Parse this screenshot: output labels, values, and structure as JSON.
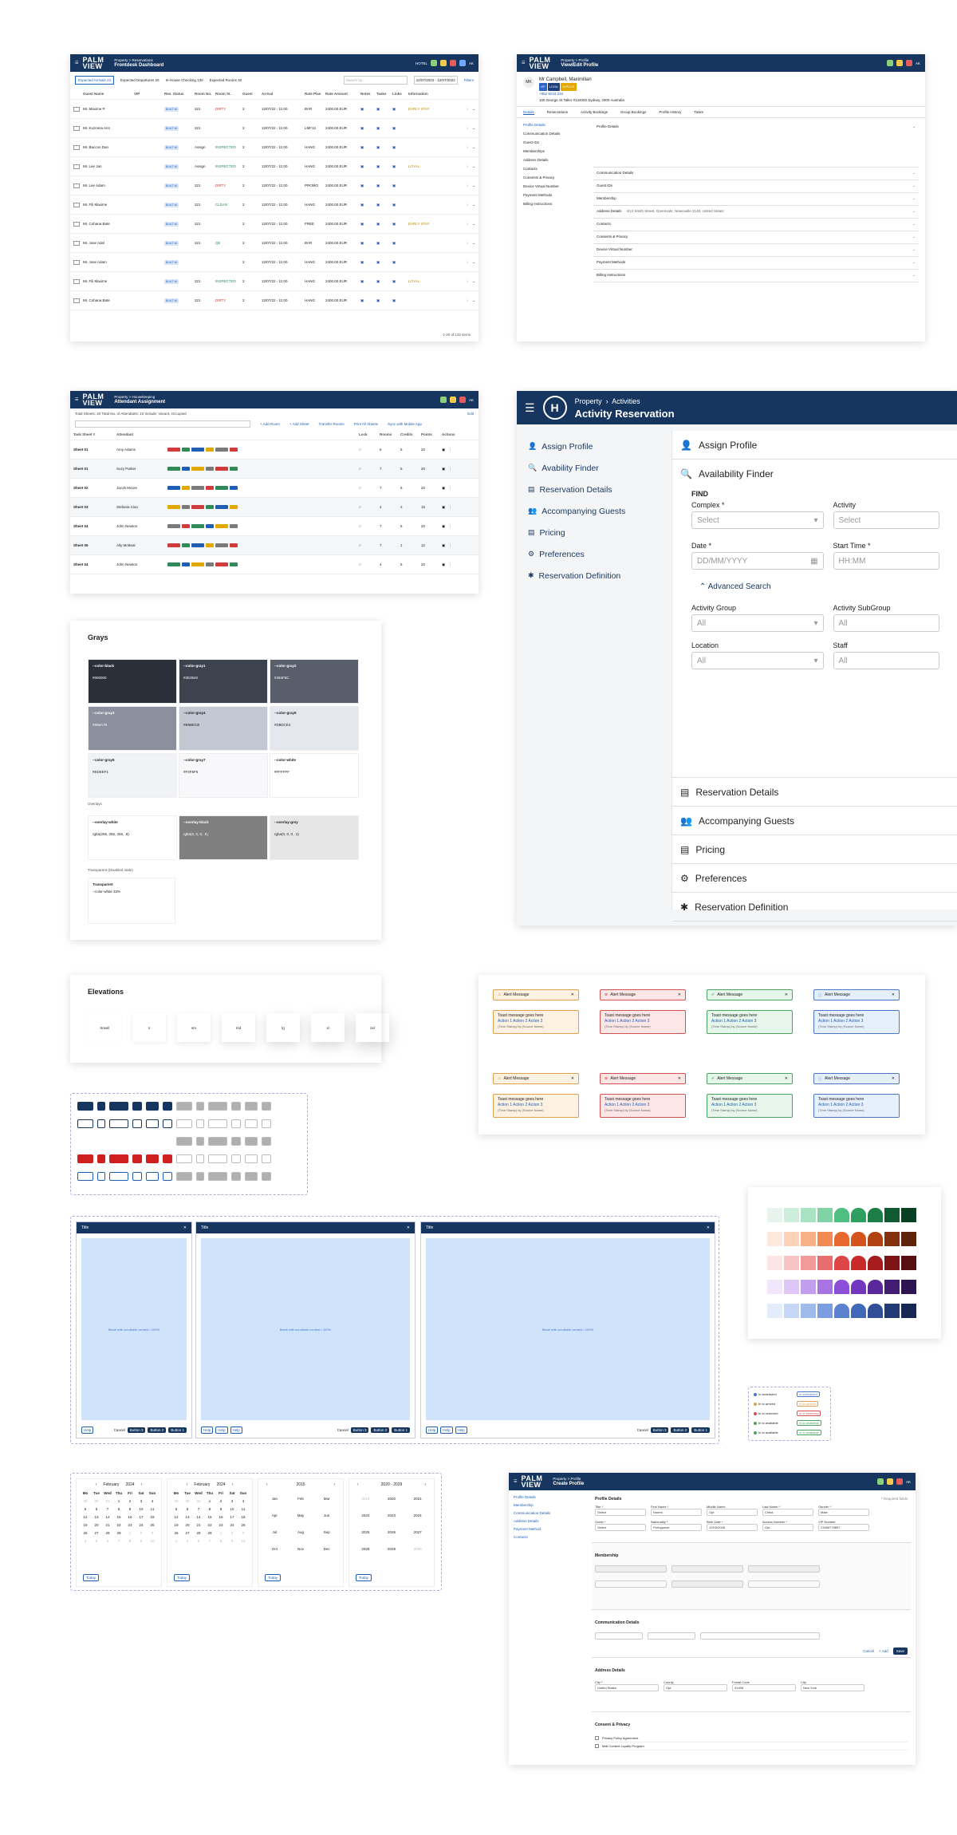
{
  "dashboard": {
    "hotel": "HOTEL",
    "date": "14 Jun · 12:00 AM",
    "crumb": "Property  >  Reservations",
    "title": "Frontdesk Dashboard",
    "filters": [
      "Expected Arrivals 24",
      "Expected Departures 20",
      "In-House Checking 130",
      "Expected Rooms 30"
    ],
    "search_placeholder": "Search by...",
    "date_range": "12/07/2022 - 12/07/2022",
    "filter_label": "Filters",
    "headers": [
      "Guest Name",
      "VIP",
      "Res. Status",
      "Room No.",
      "Room St.",
      "Guest",
      "Arrival",
      "Rate Plan",
      "Rate Amount",
      "Notes",
      "Tasks",
      "Links",
      "Information"
    ],
    "rows": [
      {
        "name": "Mr. Maxime P.",
        "status": "BUILT IN",
        "room": "321",
        "rstat": "DIRTY",
        "guest": "2",
        "arr": "12/07/22 - 11:00",
        "plan": "BAR",
        "amt": "2400.00 EUR",
        "info": "EARLY STAY"
      },
      {
        "name": "Mr. Kuzmina Ann",
        "status": "BUILT IN",
        "room": "321",
        "rstat": "",
        "guest": "2",
        "arr": "12/07/22 - 11:00",
        "plan": "LMF12",
        "amt": "2400.00 EUR",
        "info": ""
      },
      {
        "name": "Mr. Baccon Dan",
        "status": "BUILT IN",
        "room": "Assign",
        "rstat": "INSPECTED",
        "guest": "2",
        "arr": "12/07/22 - 11:00",
        "plan": "HANG",
        "amt": "2400.00 EUR",
        "info": ""
      },
      {
        "name": "Mr. Lee Jan",
        "status": "BUILT IN",
        "room": "Assign",
        "rstat": "INSPECTED",
        "guest": "2",
        "arr": "12/07/22 - 11:00",
        "plan": "HANG",
        "amt": "2400.00 EUR",
        "info": "LOYAL"
      },
      {
        "name": "Mr. Lee Adam",
        "status": "BUILT IN",
        "room": "321",
        "rstat": "DIRTY",
        "guest": "2",
        "arr": "12/07/22 - 11:00",
        "plan": "PROMO",
        "amt": "2400.00 EUR",
        "info": ""
      },
      {
        "name": "Mr. Fili Maxime",
        "status": "BUILT IN",
        "room": "321",
        "rstat": "CLEAN",
        "guest": "2",
        "arr": "12/07/22 - 11:00",
        "plan": "HANG",
        "amt": "2400.00 EUR",
        "info": ""
      },
      {
        "name": "Mr. Cohana Bate",
        "status": "BUILT IN",
        "room": "321",
        "rstat": "",
        "guest": "2",
        "arr": "12/07/22 - 11:00",
        "plan": "FREE",
        "amt": "2400.00 EUR",
        "info": "EARLY STAY"
      },
      {
        "name": "Mr. Jose Adel",
        "status": "BUILT IN",
        "room": "321",
        "rstat": "QE",
        "guest": "2",
        "arr": "12/07/22 - 11:00",
        "plan": "BAR",
        "amt": "2400.00 EUR",
        "info": ""
      },
      {
        "name": "Mr. Jose Adam",
        "status": "BUILT IN",
        "room": "",
        "rstat": "",
        "guest": "2",
        "arr": "12/07/22 - 11:00",
        "plan": "HANG",
        "amt": "2400.00 EUR",
        "info": ""
      },
      {
        "name": "Mr. Fili Maxime",
        "status": "BUILT IN",
        "room": "321",
        "rstat": "INSPECTED",
        "guest": "2",
        "arr": "12/07/22 - 11:00",
        "plan": "HANG",
        "amt": "2400.00 EUR",
        "info": "LOYAL"
      },
      {
        "name": "Mr. Cohana Bate",
        "status": "BUILT IN",
        "room": "321",
        "rstat": "DIRTY",
        "guest": "2",
        "arr": "12/07/22 - 11:00",
        "plan": "HANG",
        "amt": "2400.00 EUR",
        "info": ""
      }
    ],
    "pager": "1-20 of 132 items"
  },
  "profile": {
    "crumb": "Property  >  Profile",
    "title": "View/Edit Profile",
    "name": "Mr Campbell, Maximilian",
    "phone": "+852 9234 234",
    "address": "100 George St Taller #134000 Sydney, 2000 Australia",
    "tabs": [
      "Details",
      "Reservations",
      "Activity Bookings",
      "Group Bookings",
      "Profile History",
      "Tasks"
    ],
    "side": [
      "Profile Details",
      "Communication Details",
      "Guest IDs",
      "Memberships",
      "Address Details",
      "Contacts",
      "Consents & Privacy",
      "Device Virtual Number",
      "Payment Methods",
      "Billing Instructions"
    ],
    "sections": [
      "Profile Details",
      "Communication Details",
      "Guest IDs",
      "Membership",
      "Address Details",
      "Contacts",
      "Consents & Privacy",
      "Device Virtual Number",
      "Payment Methods",
      "Billing Instructions"
    ],
    "addr_line": "4/12 Smith Street, Greenvale, Newcastle 2148, United States"
  },
  "attendant": {
    "crumb": "Property  >  Housekeeping",
    "title": "Attendant Assignment",
    "edit": "Edit",
    "summary": "Total Sheets: 20   Total No. of Attendants: 10   Include: Vacant, Occupied",
    "actions": [
      "+ Add Room",
      "+ Add Sheet",
      "Transfer Rooms",
      "Print All Sheets",
      "Sync with Mobile App"
    ],
    "headers": [
      "Task Sheet #",
      "Attendant",
      "Lock",
      "Rooms",
      "Credits",
      "Points",
      "Actions"
    ],
    "rows": [
      {
        "sheet": "Sheet 01",
        "att": "Amy Adams"
      },
      {
        "sheet": "Sheet 01",
        "att": "Suzy Parker"
      },
      {
        "sheet": "Sheet 02",
        "att": "Jacob Moore"
      },
      {
        "sheet": "Sheet 03",
        "att": "Stefania Ciao"
      },
      {
        "sheet": "Sheet 04",
        "att": "John Newton"
      },
      {
        "sheet": "Sheet 05",
        "att": "Ally McBeal"
      },
      {
        "sheet": "Sheet 04",
        "att": "John Newton"
      }
    ],
    "vals": [
      [
        "6",
        "5",
        "20"
      ],
      [
        "7",
        "5",
        "20"
      ],
      [
        "7",
        "6",
        "20"
      ],
      [
        "4",
        "2",
        "15"
      ],
      [
        "7",
        "5",
        "20"
      ],
      [
        "7",
        "1",
        "12"
      ],
      [
        "4",
        "5",
        "20"
      ]
    ]
  },
  "activity": {
    "crumb1": "Property",
    "crumb2": "Activities",
    "title": "Activity Reservation",
    "nav": [
      "Assign Profile",
      "Avability Finder",
      "Reservation Details",
      "Accompanying Guests",
      "Pricing",
      "Preferences",
      "Reservation Definition"
    ],
    "assign": "Assign Profile",
    "finder": "Availability Finder",
    "find": "FIND",
    "complex": "Complex *",
    "activity": "Activity",
    "select": "Select",
    "date": "Date *",
    "date_ph": "DD/MM/YYYY",
    "start": "Start Time *",
    "start_ph": "HH:MM",
    "advanced": "Advanced Search",
    "group": "Activity Group",
    "subgroup": "Activity SubGroup",
    "location": "Location",
    "staff": "Staff",
    "all": "All",
    "bottom": [
      "Reservation Details",
      "Accompanying Guests",
      "Pricing",
      "Preferences",
      "Reservation Definition"
    ]
  },
  "grays": {
    "title": "Grays",
    "swatches": [
      {
        "name": "--color-black",
        "hex": "#000000",
        "bg": "#2b2f38",
        "fg": "#fff"
      },
      {
        "name": "--color-gray1",
        "hex": "#2E3540",
        "bg": "#3c424e",
        "fg": "#fff"
      },
      {
        "name": "--color-gray2",
        "hex": "#494F5C",
        "bg": "#585e6b",
        "fg": "#fff"
      },
      {
        "name": "--color-gray3",
        "hex": "#656A79",
        "bg": "#8a909e",
        "fg": "#fff"
      },
      {
        "name": "--color-gray4",
        "hex": "#B9BECB",
        "bg": "#c3c8d3",
        "fg": "#222"
      },
      {
        "name": "--color-gray5",
        "hex": "#D8DCE4",
        "bg": "#e4e7ee",
        "fg": "#222"
      },
      {
        "name": "--color-gray6",
        "hex": "#EDEEF1",
        "bg": "#f1f2f5",
        "fg": "#222"
      },
      {
        "name": "--color-gray7",
        "hex": "#F4F5F5",
        "bg": "#f8f8fa",
        "fg": "#222"
      },
      {
        "name": "--color-white",
        "hex": "#FFFFFF",
        "bg": "#ffffff",
        "fg": "#222"
      }
    ],
    "overlays_title": "Overlays",
    "overlays": [
      {
        "name": "--overlay-white",
        "val": "rgba(255, 255, 255, .8)",
        "bg": "#fff",
        "fg": "#222"
      },
      {
        "name": "--overlay-black",
        "val": "rgba(0, 0, 0, .5)",
        "bg": "#7f7f7f",
        "fg": "#fff"
      },
      {
        "name": "--overlay-grey",
        "val": "rgba(0, 0, 0, .1)",
        "bg": "#e6e6e6",
        "fg": "#222"
      }
    ],
    "transparent_title": "Transparent (Disabled state)",
    "transparent": "Transparent",
    "transparent_val": "--color-white 33%"
  },
  "elevations": {
    "title": "Elevations",
    "items": [
      "Small",
      "s",
      "sm",
      "md",
      "lg",
      "xl",
      "2xl"
    ]
  },
  "alerts": {
    "title": "Alert Message",
    "text": "Toast message goes here",
    "actions": "Action 1   Action 2   Action 3",
    "source": "(Time Stamp) by (Source Name)"
  },
  "dialogs": {
    "title": "Title",
    "body": "Blank with scrollable content • 100%",
    "footer_left": [
      "Help",
      "Help",
      "Help"
    ],
    "cancel": "Cancel",
    "buttons": [
      "Button 3",
      "Button 2",
      "Button 1"
    ]
  },
  "statuses": [
    "In scheduled",
    "In to arrived",
    "In to reserved",
    "In to available",
    "In to available"
  ],
  "calendars": {
    "months": [
      {
        "m": "February",
        "y": "2024"
      },
      {
        "m": "February",
        "y": "2024"
      }
    ],
    "dow": [
      "Mo",
      "Tue",
      "Wed",
      "Thu",
      "Fri",
      "Sat",
      "Sun"
    ],
    "year": "2015",
    "months_grid": [
      "Jan",
      "Feb",
      "Mar",
      "Apr",
      "May",
      "Jun",
      "Jul",
      "Aug",
      "Sep",
      "Oct",
      "Nov",
      "Dec"
    ],
    "decade": "2020 - 2029",
    "years": [
      "2019",
      "2020",
      "2021",
      "2022",
      "2023",
      "2024",
      "2025",
      "2026",
      "2027",
      "2028",
      "2029",
      "2030"
    ],
    "today": "Today"
  },
  "create": {
    "crumb": "Property  >  Profile",
    "title": "Create Profile",
    "side": [
      "Profile Details",
      "Membership",
      "Communication Details",
      "Address Details",
      "Payment Method",
      "Contacts"
    ],
    "s1": "Profile Details",
    "s2": "Membership",
    "s3": "Communication Details",
    "s4": "Address Details",
    "s5": "Consent & Privacy",
    "required": "* Required fields",
    "f1": [
      [
        "Title *",
        "Select"
      ],
      [
        "First Name *",
        "Noemi"
      ],
      [
        "Middle Name",
        "Opt"
      ],
      [
        "Last Name *",
        "Chitot"
      ],
      [
        "Gender *",
        "Male"
      ]
    ],
    "f2": [
      [
        "Guest *",
        "Select"
      ],
      [
        "Nationality *",
        "Portuguese"
      ],
      [
        "Birth Date *",
        "12/03/2026"
      ],
      [
        "Access Number *",
        "Opt"
      ],
      [
        "VIP Number",
        "23456779897"
      ]
    ],
    "f3": [
      [
        "City *",
        "United States"
      ],
      [
        "County",
        "Opt"
      ],
      [
        "Postal Code",
        "91406"
      ],
      [
        "City",
        "New York"
      ]
    ],
    "consent": [
      "Privacy Policy Agreement",
      "Mail Content Loyalty Program"
    ],
    "cancel": "Cancel",
    "add": "+ Add",
    "save": "Save"
  },
  "colors": {
    "rows": [
      [
        "#e7f4ee",
        "#cdeedd",
        "#a9e3c4",
        "#7fd3a4",
        "#4fbe80",
        "#2e9f5f",
        "#1d7d47",
        "#0f5a30",
        "#0a4022"
      ],
      [
        "#fde9dd",
        "#fbd2b8",
        "#f7b087",
        "#f18a55",
        "#e8692f",
        "#d3531c",
        "#b04213",
        "#86310e",
        "#5e230a"
      ],
      [
        "#fde5e5",
        "#f9c3c3",
        "#f29a9a",
        "#e96d6d",
        "#de4545",
        "#c82929",
        "#a61c1c",
        "#7e1414",
        "#570e0e"
      ],
      [
        "#f1e6fb",
        "#dec6f6",
        "#c49eee",
        "#a874e4",
        "#8c4fd8",
        "#7336bf",
        "#5b289b",
        "#431d74",
        "#2e1450"
      ],
      [
        "#e3ecfa",
        "#c5d7f4",
        "#9fbbeb",
        "#7a9edf",
        "#5b81cf",
        "#4268b8",
        "#304f97",
        "#223a73",
        "#172852"
      ]
    ]
  }
}
